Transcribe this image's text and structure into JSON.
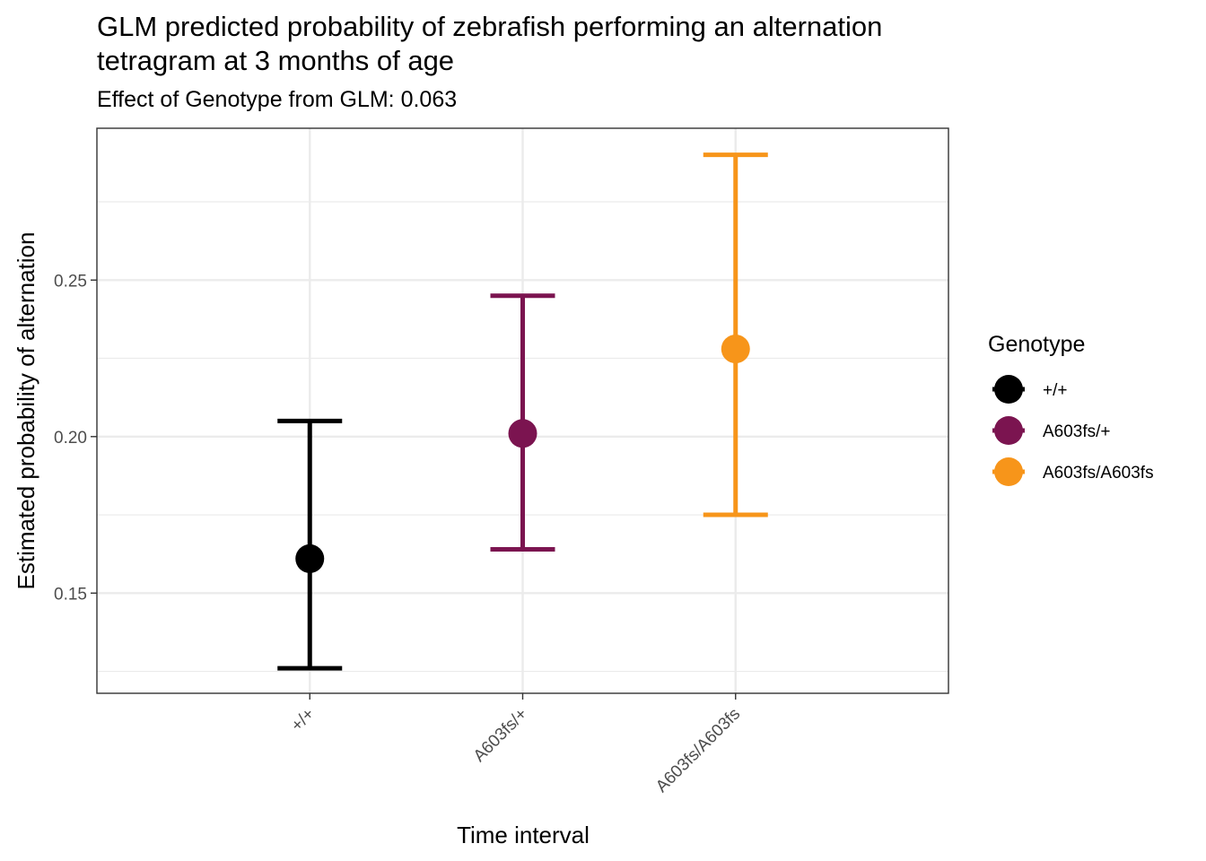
{
  "chart_data": {
    "type": "scatter",
    "title_lines": [
      "GLM predicted probability of zebrafish performing an alternation",
      "tetragram at 3 months of age"
    ],
    "subtitle": "Effect of Genotype from GLM: 0.063",
    "xlabel": "Time interval",
    "ylabel": "Estimated probability of alternation",
    "categories": [
      "+/+",
      "A603fs/+",
      "A603fs/A603fs"
    ],
    "series": [
      {
        "name": "+/+",
        "color": "#000000",
        "estimate": 0.161,
        "lower": 0.126,
        "upper": 0.205
      },
      {
        "name": "A603fs/+",
        "color": "#7b1450",
        "estimate": 0.201,
        "lower": 0.164,
        "upper": 0.245
      },
      {
        "name": "A603fs/A603fs",
        "color": "#f7951a",
        "estimate": 0.228,
        "lower": 0.175,
        "upper": 0.29
      }
    ],
    "ylim": [
      0.118,
      0.2985
    ],
    "yticks": [
      0.15,
      0.2,
      0.25
    ],
    "ytick_labels": [
      "0.15",
      "0.20",
      "0.25"
    ],
    "grid": true,
    "legend": {
      "title": "Genotype",
      "placement": "right"
    }
  }
}
